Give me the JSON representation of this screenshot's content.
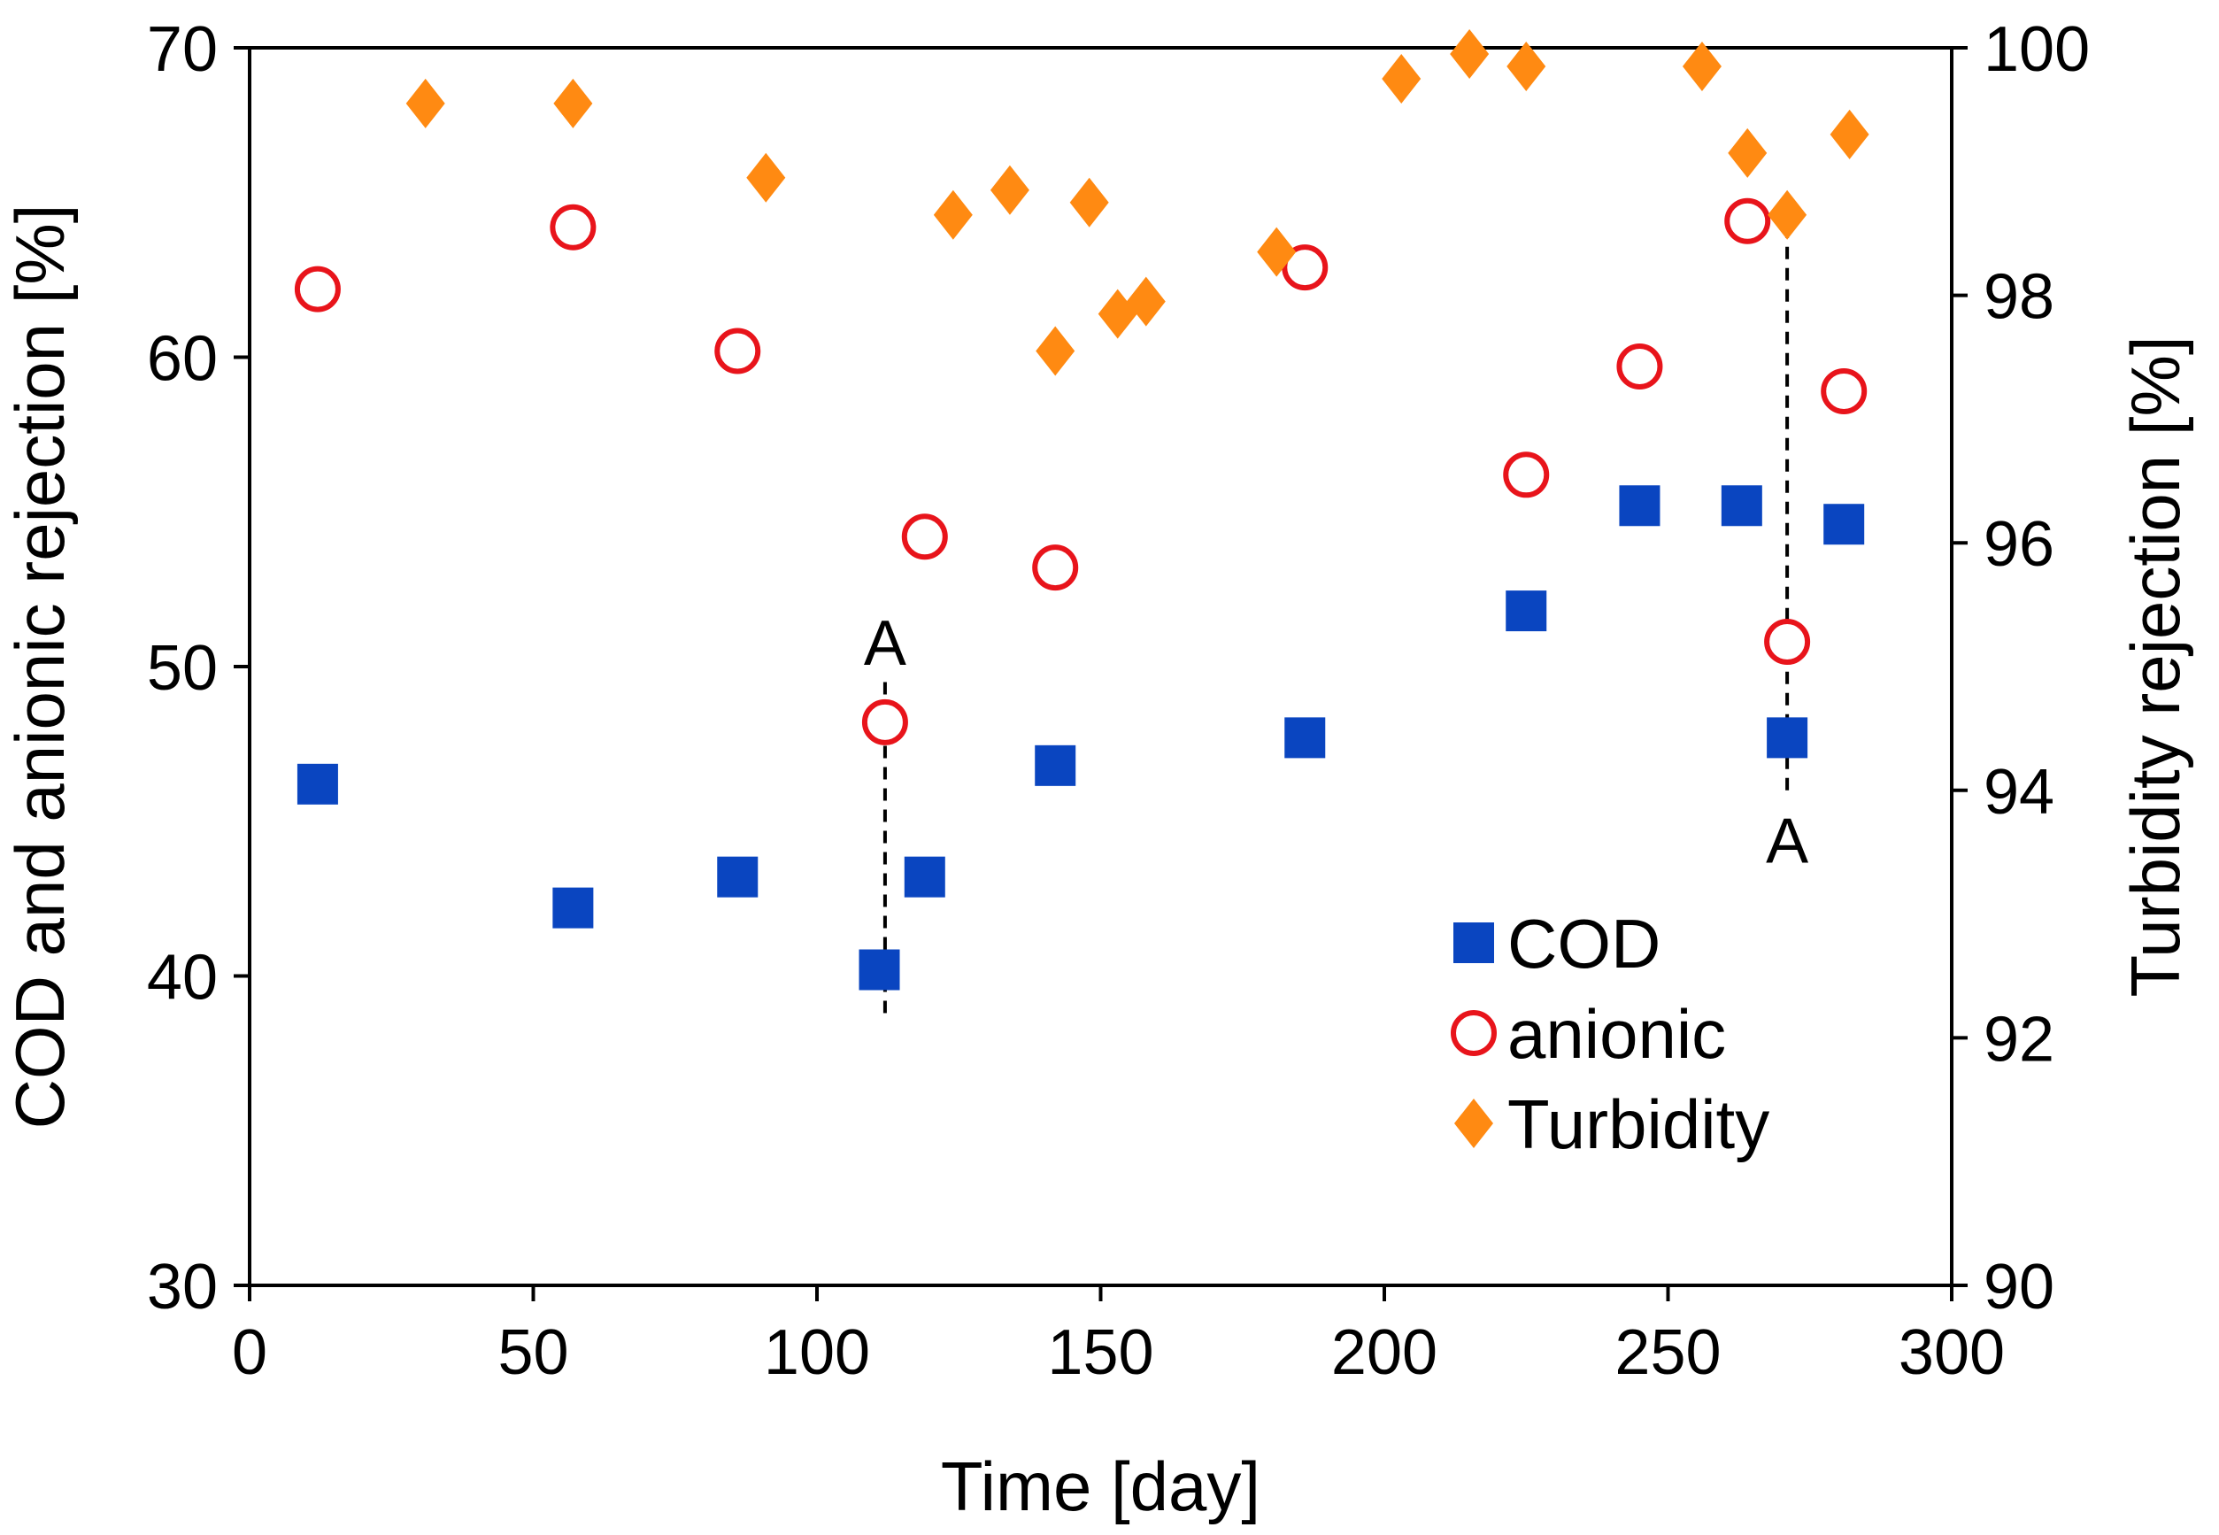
{
  "chart_data": {
    "type": "scatter",
    "xlabel": "Time [day]",
    "ylabel_left": "COD and anionic rejection [%]",
    "ylabel_right": "Turbidity rejection [%]",
    "xlim": [
      0,
      300
    ],
    "ylim_left": [
      30,
      70
    ],
    "ylim_right": [
      90,
      100
    ],
    "x_ticks": [
      0,
      50,
      100,
      150,
      200,
      250,
      300
    ],
    "y_left_ticks": [
      30,
      40,
      50,
      60,
      70
    ],
    "y_right_ticks": [
      90,
      92,
      94,
      96,
      98,
      100
    ],
    "grid": false,
    "legend_position": "lower-right",
    "series": [
      {
        "name": "COD",
        "axis": "left",
        "marker": "square",
        "color": "#0a45c0",
        "x": [
          12,
          57,
          86,
          111,
          119,
          142,
          186,
          225,
          245,
          263,
          271,
          281
        ],
        "y": [
          46.2,
          42.2,
          43.2,
          40.2,
          43.2,
          46.8,
          47.7,
          51.8,
          55.2,
          55.2,
          47.7,
          54.6
        ]
      },
      {
        "name": "anionic",
        "axis": "left",
        "marker": "circle-open",
        "color": "#e8141b",
        "x": [
          12,
          57,
          86,
          112,
          119,
          142,
          186,
          225,
          245,
          264,
          271,
          281
        ],
        "y": [
          62.2,
          64.2,
          60.2,
          48.2,
          54.2,
          53.2,
          62.9,
          56.2,
          59.7,
          64.4,
          50.8,
          58.9
        ]
      },
      {
        "name": "Turbidity",
        "axis": "right",
        "marker": "diamond",
        "color": "#ff8a12",
        "x": [
          31,
          57,
          91,
          124,
          134,
          142,
          148,
          153,
          158,
          181,
          203,
          215,
          225,
          256,
          264,
          271,
          282
        ],
        "y": [
          99.55,
          99.55,
          98.95,
          98.65,
          98.85,
          97.55,
          98.75,
          97.85,
          97.95,
          98.35,
          99.75,
          99.95,
          99.85,
          99.85,
          99.15,
          98.65,
          99.3
        ]
      }
    ],
    "annotations": [
      {
        "label": "A",
        "x": 112,
        "y_from": 38.8,
        "y_to": 49.5,
        "label_y": 50.8
      },
      {
        "label": "A",
        "x": 271,
        "y_from": 46.0,
        "y_to": 64.8,
        "label_y": 44.4
      }
    ]
  }
}
